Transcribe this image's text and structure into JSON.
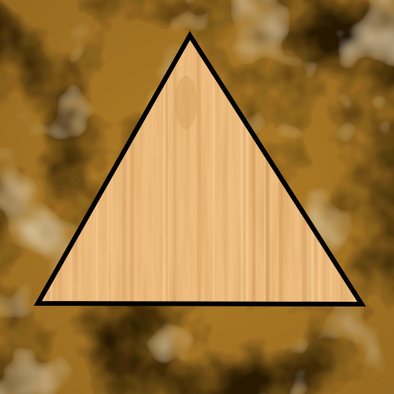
{
  "scene": {
    "shape": "triangle",
    "shape_fill": "wood-grain",
    "outline_color": "#000000",
    "background": "cloudy-texture",
    "colors": {
      "background_base": "#b47f26",
      "background_dark": "#2e1d05",
      "background_light": "#f1dcb6",
      "wood_base": "#eebc7e",
      "wood_light": "#f6d29e",
      "wood_dark": "#cf9556"
    }
  }
}
